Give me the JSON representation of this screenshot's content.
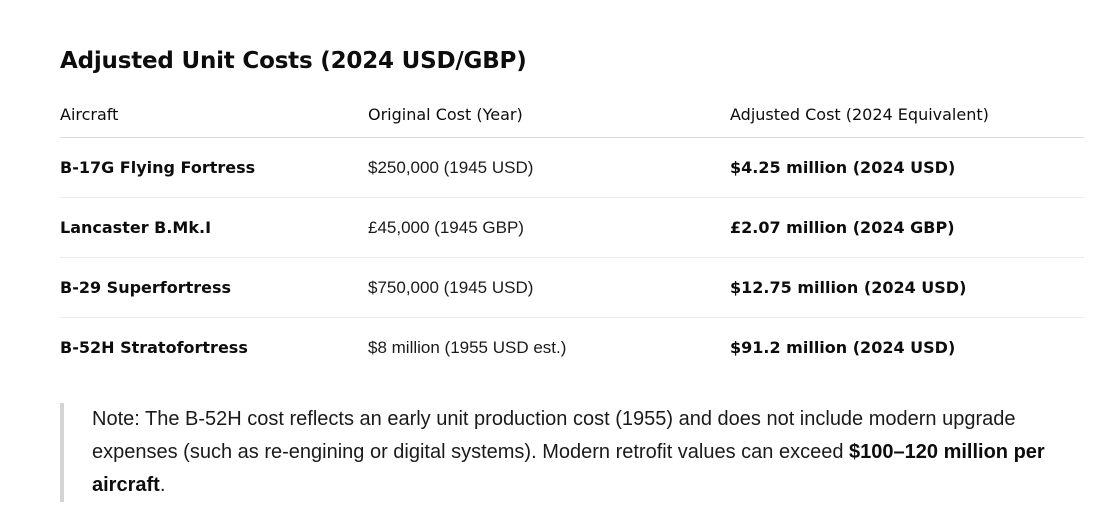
{
  "heading": "Adjusted Unit Costs (2024 USD/GBP)",
  "table": {
    "headers": [
      "Aircraft",
      "Original Cost (Year)",
      "Adjusted Cost (2024 Equivalent)"
    ],
    "rows": [
      {
        "aircraft": "B-17G Flying Fortress",
        "original": "$250,000 (1945 USD)",
        "adjusted": "$4.25 million (2024 USD)"
      },
      {
        "aircraft": "Lancaster B.Mk.I",
        "original": "£45,000 (1945 GBP)",
        "adjusted": "£2.07 million (2024 GBP)"
      },
      {
        "aircraft": "B-29 Superfortress",
        "original": "$750,000 (1945 USD)",
        "adjusted": "$12.75 million (2024 USD)"
      },
      {
        "aircraft": "B-52H Stratofortress",
        "original": "$8 million (1955 USD est.)",
        "adjusted": "$91.2 million (2024 USD)"
      }
    ]
  },
  "note": {
    "text_before": "Note: The B-52H cost reflects an early unit production cost (1955) and does not include modern upgrade expenses (such as re-engining or digital systems). Modern retrofit values can exceed ",
    "bold": "$100–120 million per aircraft",
    "text_after": "."
  }
}
